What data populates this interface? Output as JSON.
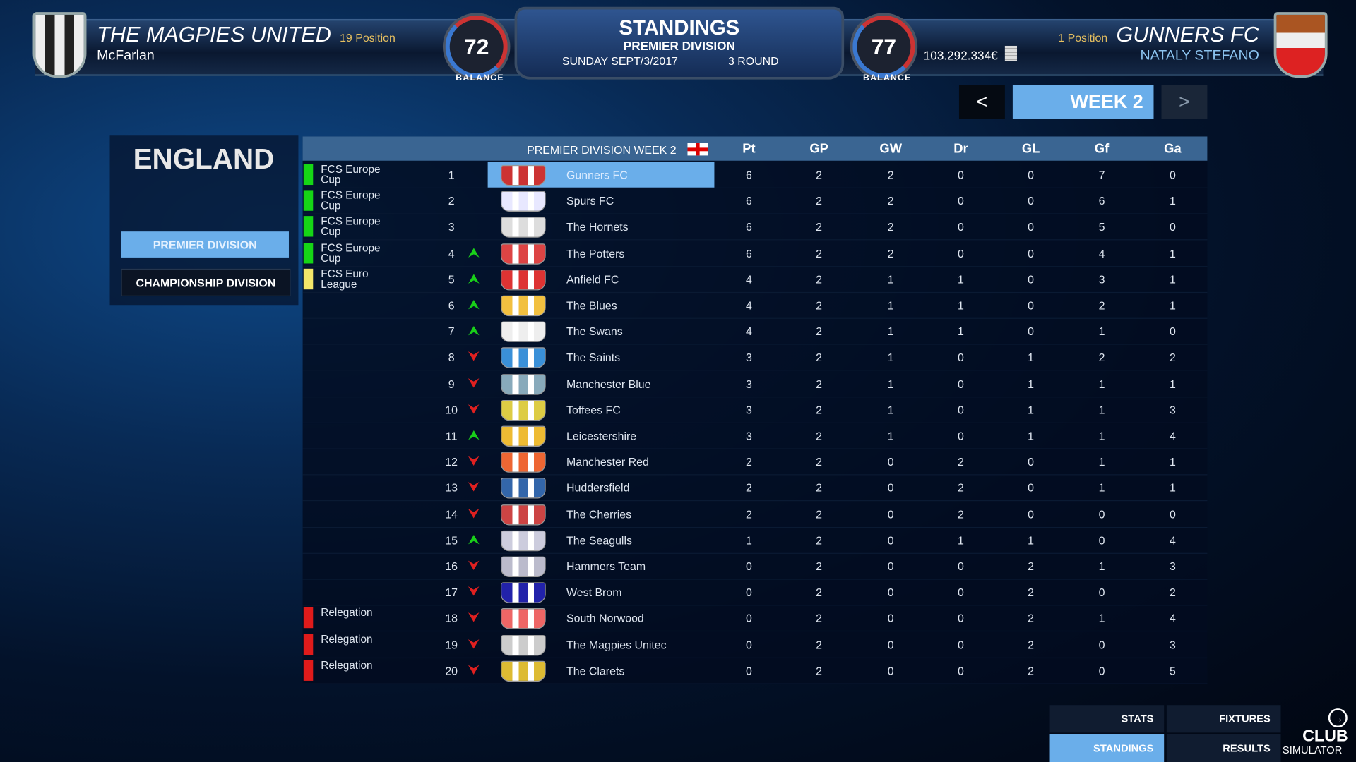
{
  "header": {
    "home": {
      "team": "THE MAGPIES UNITED",
      "manager": "McFarlan",
      "position": "19 Position",
      "rating": "72",
      "rating_label": "BALANCE"
    },
    "away": {
      "team": "GUNNERS FC",
      "manager": "NATALY STEFANO",
      "position": "1 Position",
      "rating": "77",
      "rating_label": "BALANCE",
      "money": "103.292.334€"
    },
    "title": "STANDINGS",
    "subtitle": "PREMIER DIVISION",
    "date": "SUNDAY SEPT/3/2017",
    "round": "3 ROUND"
  },
  "week": {
    "prev": "<",
    "label": "WEEK 2",
    "next": ">"
  },
  "sidebar": {
    "country": "ENGLAND",
    "divisions": [
      {
        "label": "PREMIER DIVISION",
        "active": true
      },
      {
        "label": "CHAMPIONSHIP DIVISION",
        "active": false
      }
    ]
  },
  "table": {
    "title": "PREMIER DIVISION WEEK 2",
    "columns": [
      "Pt",
      "GP",
      "GW",
      "Dr",
      "GL",
      "Gf",
      "Ga"
    ],
    "zone_colors": {
      "europe_cup": "#16d616",
      "euro_league": "#f2e66a",
      "relegation": "#e01b1b"
    },
    "rows": [
      {
        "pos": "1",
        "zone": "FCS Europe Cup",
        "zc": "europe_cup",
        "trend": "",
        "team": "Gunners FC",
        "stats": [
          "6",
          "2",
          "2",
          "0",
          "0",
          "7",
          "0"
        ],
        "highlight": true
      },
      {
        "pos": "2",
        "zone": "FCS Europe Cup",
        "zc": "europe_cup",
        "trend": "",
        "team": "Spurs FC",
        "stats": [
          "6",
          "2",
          "2",
          "0",
          "0",
          "6",
          "1"
        ]
      },
      {
        "pos": "3",
        "zone": "FCS Europe Cup",
        "zc": "europe_cup",
        "trend": "",
        "team": "The Hornets",
        "stats": [
          "6",
          "2",
          "2",
          "0",
          "0",
          "5",
          "0"
        ]
      },
      {
        "pos": "4",
        "zone": "FCS Europe Cup",
        "zc": "europe_cup",
        "trend": "up",
        "team": "The Potters",
        "stats": [
          "6",
          "2",
          "2",
          "0",
          "0",
          "4",
          "1"
        ]
      },
      {
        "pos": "5",
        "zone": "FCS Euro League",
        "zc": "euro_league",
        "trend": "up",
        "team": "Anfield FC",
        "stats": [
          "4",
          "2",
          "1",
          "1",
          "0",
          "3",
          "1"
        ]
      },
      {
        "pos": "6",
        "zone": "",
        "zc": "",
        "trend": "up",
        "team": "The Blues",
        "stats": [
          "4",
          "2",
          "1",
          "1",
          "0",
          "2",
          "1"
        ]
      },
      {
        "pos": "7",
        "zone": "",
        "zc": "",
        "trend": "up",
        "team": "The Swans",
        "stats": [
          "4",
          "2",
          "1",
          "1",
          "0",
          "1",
          "0"
        ]
      },
      {
        "pos": "8",
        "zone": "",
        "zc": "",
        "trend": "down",
        "team": "The Saints",
        "stats": [
          "3",
          "2",
          "1",
          "0",
          "1",
          "2",
          "2"
        ]
      },
      {
        "pos": "9",
        "zone": "",
        "zc": "",
        "trend": "down",
        "team": "Manchester Blue",
        "stats": [
          "3",
          "2",
          "1",
          "0",
          "1",
          "1",
          "1"
        ]
      },
      {
        "pos": "10",
        "zone": "",
        "zc": "",
        "trend": "down",
        "team": "Toffees FC",
        "stats": [
          "3",
          "2",
          "1",
          "0",
          "1",
          "1",
          "3"
        ]
      },
      {
        "pos": "11",
        "zone": "",
        "zc": "",
        "trend": "up",
        "team": "Leicestershire",
        "stats": [
          "3",
          "2",
          "1",
          "0",
          "1",
          "1",
          "4"
        ]
      },
      {
        "pos": "12",
        "zone": "",
        "zc": "",
        "trend": "down",
        "team": "Manchester Red",
        "stats": [
          "2",
          "2",
          "0",
          "2",
          "0",
          "1",
          "1"
        ]
      },
      {
        "pos": "13",
        "zone": "",
        "zc": "",
        "trend": "down",
        "team": "Huddersfield",
        "stats": [
          "2",
          "2",
          "0",
          "2",
          "0",
          "1",
          "1"
        ]
      },
      {
        "pos": "14",
        "zone": "",
        "zc": "",
        "trend": "down",
        "team": "The Cherries",
        "stats": [
          "2",
          "2",
          "0",
          "2",
          "0",
          "0",
          "0"
        ]
      },
      {
        "pos": "15",
        "zone": "",
        "zc": "",
        "trend": "up",
        "team": "The Seagulls",
        "stats": [
          "1",
          "2",
          "0",
          "1",
          "1",
          "0",
          "4"
        ]
      },
      {
        "pos": "16",
        "zone": "",
        "zc": "",
        "trend": "down",
        "team": "Hammers Team",
        "stats": [
          "0",
          "2",
          "0",
          "0",
          "2",
          "1",
          "3"
        ]
      },
      {
        "pos": "17",
        "zone": "",
        "zc": "",
        "trend": "down",
        "team": "West Brom",
        "stats": [
          "0",
          "2",
          "0",
          "0",
          "2",
          "0",
          "2"
        ]
      },
      {
        "pos": "18",
        "zone": "Relegation",
        "zc": "relegation",
        "trend": "down",
        "team": "South Norwood",
        "stats": [
          "0",
          "2",
          "0",
          "0",
          "2",
          "1",
          "4"
        ]
      },
      {
        "pos": "19",
        "zone": "Relegation",
        "zc": "relegation",
        "trend": "down",
        "team": "The Magpies Unitec",
        "stats": [
          "0",
          "2",
          "0",
          "0",
          "2",
          "0",
          "3"
        ]
      },
      {
        "pos": "20",
        "zone": "Relegation",
        "zc": "relegation",
        "trend": "down",
        "team": "The Clarets",
        "stats": [
          "0",
          "2",
          "0",
          "0",
          "2",
          "0",
          "5"
        ]
      }
    ]
  },
  "bottom_nav": {
    "stats": "STATS",
    "fixtures": "FIXTURES",
    "standings": "STANDINGS",
    "results": "RESULTS"
  },
  "logo": {
    "line1": "CLUB",
    "line2": "SIMULATOR"
  },
  "colors": {
    "accent": "#6aaeea",
    "header": "#3a6592"
  }
}
